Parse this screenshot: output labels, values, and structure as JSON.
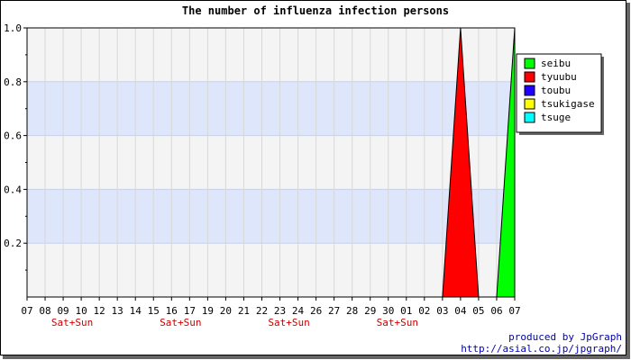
{
  "chart_data": {
    "type": "area",
    "title": "The number of influenza infection persons",
    "xlabel": "",
    "ylabel": "",
    "ylim": [
      0,
      1.0
    ],
    "yticks": [
      "0.2",
      "0.4",
      "0.6",
      "0.8",
      "1.0"
    ],
    "categories": [
      "07",
      "08",
      "09",
      "10",
      "12",
      "13",
      "14",
      "15",
      "16",
      "17",
      "19",
      "20",
      "21",
      "22",
      "23",
      "24",
      "26",
      "27",
      "28",
      "29",
      "30",
      "01",
      "02",
      "03",
      "04",
      "05",
      "06",
      "07"
    ],
    "weekend_labels": [
      {
        "label": "Sat+Sun",
        "at_index": 2.5
      },
      {
        "label": "Sat+Sun",
        "at_index": 8.5
      },
      {
        "label": "Sat+Sun",
        "at_index": 14.5
      },
      {
        "label": "Sat+Sun",
        "at_index": 20.5
      }
    ],
    "band_fills": [
      "#ffffff",
      "#dde6fb"
    ],
    "grid": true,
    "legend_position": "top-right",
    "series": [
      {
        "name": "seibu",
        "color": "#00ff00",
        "values": [
          0,
          0,
          0,
          0,
          0,
          0,
          0,
          0,
          0,
          0,
          0,
          0,
          0,
          0,
          0,
          0,
          0,
          0,
          0,
          0,
          0,
          0,
          0,
          0,
          0,
          0,
          0,
          1
        ]
      },
      {
        "name": "tyuubu",
        "color": "#ff0000",
        "values": [
          0,
          0,
          0,
          0,
          0,
          0,
          0,
          0,
          0,
          0,
          0,
          0,
          0,
          0,
          0,
          0,
          0,
          0,
          0,
          0,
          0,
          0,
          0,
          0,
          1,
          0,
          0,
          0
        ]
      },
      {
        "name": "toubu",
        "color": "#2200ff",
        "values": [
          0,
          0,
          0,
          0,
          0,
          0,
          0,
          0,
          0,
          0,
          0,
          0,
          0,
          0,
          0,
          0,
          0,
          0,
          0,
          0,
          0,
          0,
          0,
          0,
          0,
          0,
          0,
          0
        ]
      },
      {
        "name": "tsukigase",
        "color": "#ffff00",
        "values": [
          0,
          0,
          0,
          0,
          0,
          0,
          0,
          0,
          0,
          0,
          0,
          0,
          0,
          0,
          0,
          0,
          0,
          0,
          0,
          0,
          0,
          0,
          0,
          0,
          0,
          0,
          0,
          0
        ]
      },
      {
        "name": "tsuge",
        "color": "#00ffff",
        "values": [
          0,
          0,
          0,
          0,
          0,
          0,
          0,
          0,
          0,
          0,
          0,
          0,
          0,
          0,
          0,
          0,
          0,
          0,
          0,
          0,
          0,
          0,
          0,
          0,
          0,
          0,
          0,
          0
        ]
      }
    ]
  },
  "footer": {
    "line1": "produced by JpGraph",
    "line2": "http://asial.co.jp/jpgraph/"
  },
  "colors": {
    "weekend_text": "#cc0000",
    "credit_text": "#0000aa",
    "frame_shadow": "#666666"
  }
}
